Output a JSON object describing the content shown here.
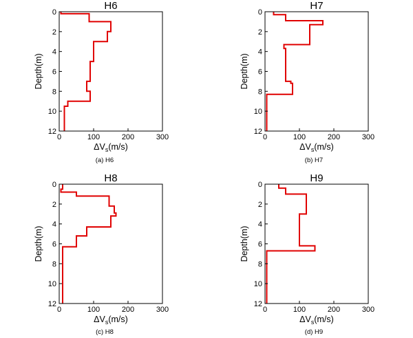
{
  "figure": {
    "y_axis_label": "Depth(m)",
    "x_axis_label": {
      "delta": "ΔV",
      "sub": "s",
      "unit": "(m/s)"
    }
  },
  "chart_data": [
    {
      "type": "line",
      "title": "H6",
      "caption": "(a)  H6",
      "xlabel": "ΔVs(m/s)",
      "ylabel": "Depth(m)",
      "xlim": [
        0,
        300
      ],
      "ylim": [
        0,
        12
      ],
      "y_inverted": true,
      "x_ticks": [
        0,
        100,
        200,
        300
      ],
      "y_ticks": [
        0,
        2,
        4,
        6,
        8,
        10,
        12
      ],
      "grid": false,
      "color": "#e00000",
      "series": [
        {
          "x": [
            5,
            5,
            87,
            87,
            150,
            150,
            140,
            140,
            100,
            100,
            90,
            90,
            80,
            80,
            90,
            90,
            25,
            25,
            15,
            15
          ],
          "depth": [
            0,
            0.2,
            0.2,
            1.0,
            1.0,
            2.0,
            2.0,
            3.0,
            3.0,
            5.0,
            5.0,
            7.0,
            7.0,
            8.0,
            8.0,
            9.0,
            9.0,
            9.5,
            9.5,
            12.0
          ]
        }
      ]
    },
    {
      "type": "line",
      "title": "H7",
      "caption": "(b)  H7",
      "xlabel": "ΔVs(m/s)",
      "ylabel": "Depth(m)",
      "xlim": [
        0,
        300
      ],
      "ylim": [
        0,
        12
      ],
      "y_inverted": true,
      "x_ticks": [
        0,
        100,
        200,
        300
      ],
      "y_ticks": [
        0,
        2,
        4,
        6,
        8,
        10,
        12
      ],
      "grid": false,
      "color": "#e00000",
      "series": [
        {
          "x": [
            25,
            25,
            60,
            60,
            168,
            168,
            130,
            130,
            55,
            55,
            60,
            60,
            75,
            75,
            80,
            80,
            5,
            5
          ],
          "depth": [
            0,
            0.3,
            0.3,
            0.9,
            0.9,
            1.3,
            1.3,
            3.3,
            3.3,
            3.7,
            3.7,
            7.0,
            7.0,
            7.2,
            7.2,
            8.3,
            8.3,
            12.0
          ]
        }
      ]
    },
    {
      "type": "line",
      "title": "H8",
      "caption": "(c)  H8",
      "xlabel": "ΔVs(m/s)",
      "ylabel": "Depth(m)",
      "xlim": [
        0,
        300
      ],
      "ylim": [
        0,
        12
      ],
      "y_inverted": true,
      "x_ticks": [
        0,
        100,
        200,
        300
      ],
      "y_ticks": [
        0,
        2,
        4,
        6,
        8,
        10,
        12
      ],
      "grid": false,
      "color": "#e00000",
      "series": [
        {
          "x": [
            10,
            10,
            5,
            5,
            50,
            50,
            145,
            145,
            160,
            160,
            165,
            165,
            150,
            150,
            80,
            80,
            50,
            50,
            10,
            10
          ],
          "depth": [
            0,
            0.5,
            0.5,
            0.8,
            0.8,
            1.2,
            1.2,
            2.2,
            2.2,
            2.9,
            2.9,
            3.2,
            3.2,
            4.3,
            4.3,
            5.2,
            5.2,
            6.3,
            6.3,
            12.0
          ]
        }
      ]
    },
    {
      "type": "line",
      "title": "H9",
      "caption": "(d)  H9",
      "xlabel": "ΔVs(m/s)",
      "ylabel": "Depth(m)",
      "xlim": [
        0,
        300
      ],
      "ylim": [
        0,
        12
      ],
      "y_inverted": true,
      "x_ticks": [
        0,
        100,
        200,
        300
      ],
      "y_ticks": [
        0,
        2,
        4,
        6,
        8,
        10,
        12
      ],
      "grid": false,
      "color": "#e00000",
      "series": [
        {
          "x": [
            40,
            40,
            60,
            60,
            120,
            120,
            100,
            100,
            145,
            145,
            5,
            5
          ],
          "depth": [
            0,
            0.4,
            0.4,
            1.0,
            1.0,
            3.0,
            3.0,
            6.2,
            6.2,
            6.7,
            6.7,
            12.0
          ]
        }
      ]
    }
  ]
}
